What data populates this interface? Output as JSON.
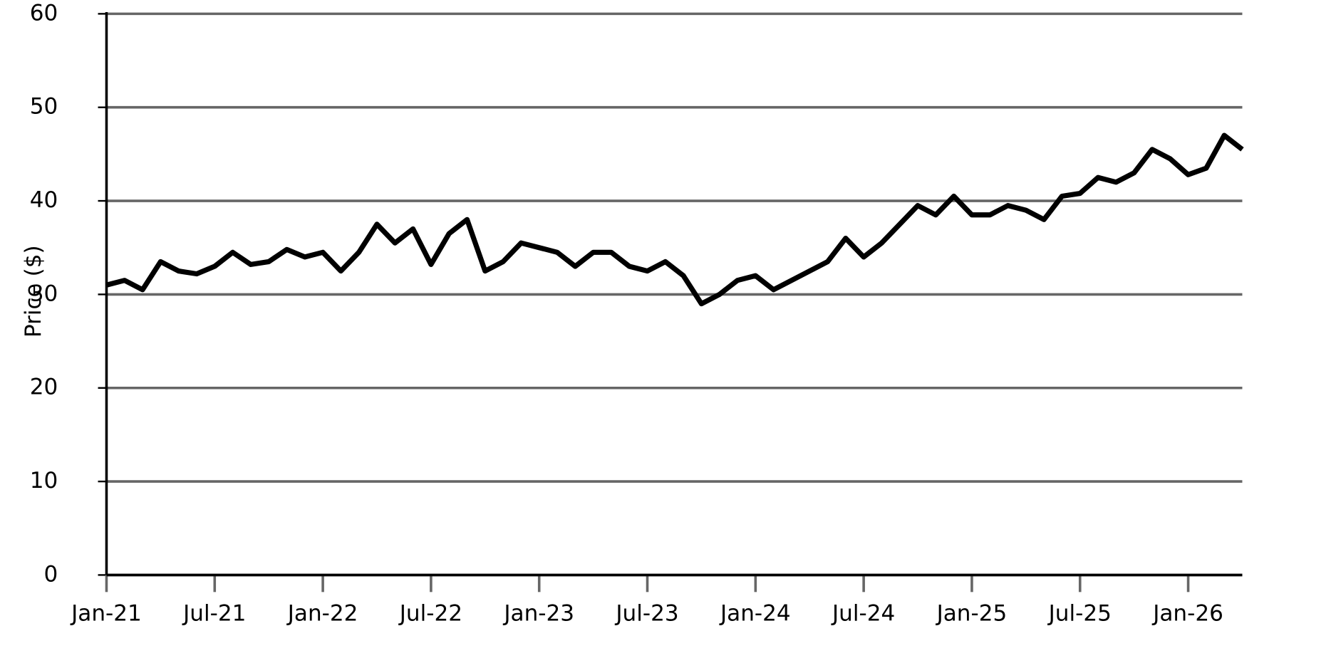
{
  "chart_data": {
    "type": "line",
    "ylabel": "Price ($)",
    "x": [
      "2021-01",
      "2021-02",
      "2021-03",
      "2021-04",
      "2021-05",
      "2021-06",
      "2021-07",
      "2021-08",
      "2021-09",
      "2021-10",
      "2021-11",
      "2021-12",
      "2022-01",
      "2022-02",
      "2022-03",
      "2022-04",
      "2022-05",
      "2022-06",
      "2022-07",
      "2022-08",
      "2022-09",
      "2022-10",
      "2022-11",
      "2022-12",
      "2023-01",
      "2023-02",
      "2023-03",
      "2023-04",
      "2023-05",
      "2023-06",
      "2023-07",
      "2023-08",
      "2023-09",
      "2023-10",
      "2023-11",
      "2023-12",
      "2024-01",
      "2024-02",
      "2024-03",
      "2024-04",
      "2024-05",
      "2024-06",
      "2024-07",
      "2024-08",
      "2024-09",
      "2024-10",
      "2024-11",
      "2024-12",
      "2025-01",
      "2025-02",
      "2025-03",
      "2025-04",
      "2025-05",
      "2025-06",
      "2025-07",
      "2025-08",
      "2025-09",
      "2025-10",
      "2025-11",
      "2025-12",
      "2026-01",
      "2026-02",
      "2026-03",
      "2026-04"
    ],
    "series": [
      {
        "name": "Price",
        "color": "#000000",
        "values": [
          31,
          31.5,
          30.5,
          33.5,
          32.5,
          32.2,
          33,
          34.5,
          33.2,
          33.5,
          34.8,
          34,
          34.5,
          32.5,
          34.5,
          37.5,
          35.5,
          37,
          33.2,
          36.5,
          38,
          32.5,
          33.5,
          35.5,
          35,
          34.5,
          33,
          34.5,
          34.5,
          33,
          32.5,
          33.5,
          32,
          29,
          30,
          31.5,
          32,
          30.5,
          31.5,
          32.5,
          33.5,
          36,
          34,
          35.5,
          37.5,
          39.5,
          38.5,
          40.5,
          38.5,
          38.5,
          39.5,
          39,
          38,
          40.5,
          40.8,
          42.5,
          42,
          43,
          45.5,
          44.5,
          42.8,
          43.5,
          47,
          45.5
        ]
      }
    ],
    "xlim": [
      "2021-01",
      "2026-04"
    ],
    "xticks": [
      {
        "value": "2021-01",
        "label": "Jan-21"
      },
      {
        "value": "2021-07",
        "label": "Jul-21"
      },
      {
        "value": "2022-01",
        "label": "Jan-22"
      },
      {
        "value": "2022-07",
        "label": "Jul-22"
      },
      {
        "value": "2023-01",
        "label": "Jan-23"
      },
      {
        "value": "2023-07",
        "label": "Jul-23"
      },
      {
        "value": "2024-01",
        "label": "Jan-24"
      },
      {
        "value": "2024-07",
        "label": "Jul-24"
      },
      {
        "value": "2025-01",
        "label": "Jan-25"
      },
      {
        "value": "2025-07",
        "label": "Jul-25"
      },
      {
        "value": "2026-01",
        "label": "Jan-26"
      }
    ],
    "ylim": [
      0,
      60
    ],
    "yticks": [
      0,
      10,
      20,
      30,
      40,
      50,
      60
    ],
    "grid": true
  }
}
